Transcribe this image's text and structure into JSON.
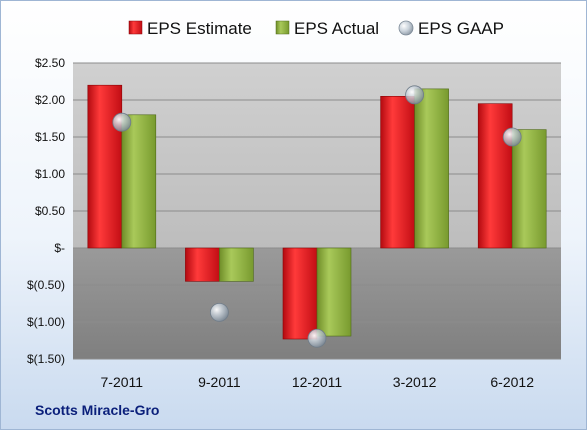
{
  "company": "Scotts Miracle-Gro",
  "chart_data": {
    "type": "bar",
    "title": "",
    "xlabel": "",
    "ylabel": "",
    "categories": [
      "7-2011",
      "9-2011",
      "12-2011",
      "3-2012",
      "6-2012"
    ],
    "series": [
      {
        "name": "EPS Estimate",
        "kind": "bar",
        "color": "#e8121b",
        "values": [
          2.2,
          -0.45,
          -1.23,
          2.05,
          1.95
        ]
      },
      {
        "name": "EPS Actual",
        "kind": "bar",
        "color": "#8fb03c",
        "values": [
          1.8,
          -0.45,
          -1.19,
          2.15,
          1.6
        ]
      },
      {
        "name": "EPS GAAP",
        "kind": "marker",
        "color": "#b9c6d4",
        "values": [
          1.7,
          -0.87,
          -1.22,
          2.07,
          1.5
        ]
      }
    ],
    "ylim": [
      -1.5,
      2.5
    ],
    "yticks": [
      2.5,
      2.0,
      1.5,
      1.0,
      0.5,
      0,
      -0.5,
      -1.0,
      -1.5
    ],
    "ytick_labels": [
      "$2.50",
      "$2.00",
      "$1.50",
      "$1.00",
      "$0.50",
      "$-",
      "$(0.50)",
      "$(1.00)",
      "$(1.50)"
    ],
    "legend_position": "top",
    "grid": true
  }
}
